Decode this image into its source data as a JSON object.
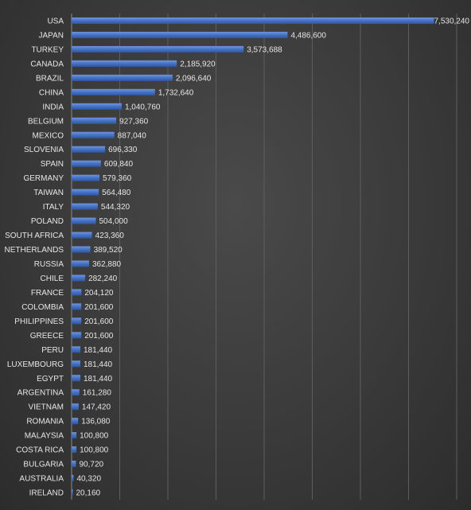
{
  "chart_data": {
    "type": "bar",
    "orientation": "horizontal",
    "title": "",
    "xlabel": "",
    "ylabel": "",
    "grid": true,
    "legend": "none",
    "xlim": [
      0,
      8000000
    ],
    "bar_color": "#4472c4",
    "categories": [
      "USA",
      "JAPAN",
      "TURKEY",
      "CANADA",
      "BRAZIL",
      "CHINA",
      "INDIA",
      "BELGIUM",
      "MEXICO",
      "SLOVENIA",
      "SPAIN",
      "GERMANY",
      "TAIWAN",
      "ITALY",
      "POLAND",
      "SOUTH AFRICA",
      "NETHERLANDS",
      "RUSSIA",
      "CHILE",
      "FRANCE",
      "COLOMBIA",
      "PHILIPPINES",
      "GREECE",
      "PERU",
      "LUXEMBOURG",
      "EGYPT",
      "ARGENTINA",
      "VIETNAM",
      "ROMANIA",
      "MALAYSIA",
      "COSTA RICA",
      "BULGARIA",
      "AUSTRALIA",
      "IRELAND"
    ],
    "values": [
      7530240,
      4486600,
      3573688,
      2185920,
      2096640,
      1732640,
      1040760,
      927360,
      887040,
      696330,
      609840,
      579360,
      564480,
      544320,
      504000,
      423360,
      389520,
      362880,
      282240,
      204120,
      201600,
      201600,
      201600,
      181440,
      181440,
      181440,
      161280,
      147420,
      136080,
      100800,
      100800,
      90720,
      40320,
      20160
    ],
    "value_labels": [
      "7,530,240",
      "4,486,600",
      "3,573,688",
      "2,185,920",
      "2,096,640",
      "1,732,640",
      "1,040,760",
      "927,360",
      "887,040",
      "696,330",
      "609,840",
      "579,360",
      "564,480",
      "544,320",
      "504,000",
      "423,360",
      "389,520",
      "362,880",
      "282,240",
      "204,120",
      "201,600",
      "201,600",
      "201,600",
      "181,440",
      "181,440",
      "181,440",
      "161,280",
      "147,420",
      "136,080",
      "100,800",
      "100,800",
      "90,720",
      "40,320",
      "20,160"
    ]
  }
}
